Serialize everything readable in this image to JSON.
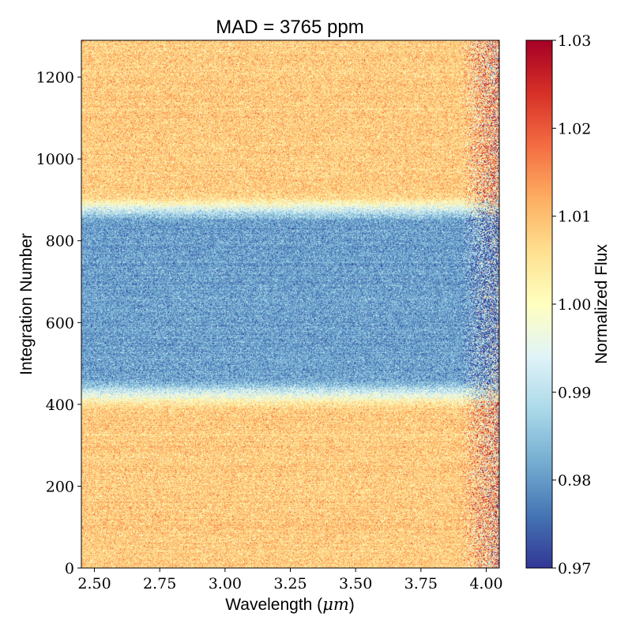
{
  "chart_data": {
    "type": "heatmap",
    "title": "MAD = 3765 ppm",
    "xlabel": "Wavelength (",
    "xlabel_math": "μm",
    "xlabel_close": ")",
    "ylabel": "Integration Number",
    "xlim": [
      2.45,
      4.05
    ],
    "ylim": [
      0,
      1290
    ],
    "x_ticks": [
      2.5,
      2.75,
      3.0,
      3.25,
      3.5,
      3.75,
      4.0
    ],
    "x_tick_labels": [
      "2.50",
      "2.75",
      "3.00",
      "3.25",
      "3.50",
      "3.75",
      "4.00"
    ],
    "y_ticks": [
      0,
      200,
      400,
      600,
      800,
      1000,
      1200
    ],
    "y_tick_labels": [
      "0",
      "200",
      "400",
      "600",
      "800",
      "1000",
      "1200"
    ],
    "colorbar": {
      "label": "Normalized Flux",
      "colormap": "RdYlBu_r",
      "range": [
        0.97,
        1.03
      ],
      "ticks": [
        0.97,
        0.98,
        0.99,
        1.0,
        1.01,
        1.02,
        1.03
      ],
      "tick_labels": [
        "0.97",
        "0.98",
        "0.99",
        "1.00",
        "1.01",
        "1.02",
        "1.03"
      ]
    },
    "profile": {
      "baseline_flux": 1.008,
      "transit_flux": 0.981,
      "ingress_start": 380,
      "ingress_end": 470,
      "egress_start": 840,
      "egress_end": 920,
      "noise_increase_above_wavelength": 3.9
    }
  }
}
